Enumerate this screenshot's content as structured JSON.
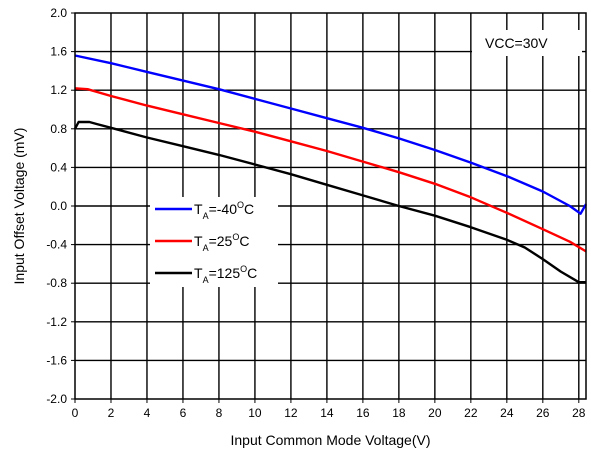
{
  "chart_data": {
    "type": "line",
    "xlabel": "Input Common Mode Voltage(V)",
    "ylabel": "Input Offset Voltage (mV)",
    "xlim": [
      0,
      28.4
    ],
    "ylim": [
      -2.0,
      2.0
    ],
    "x_ticks": [
      0,
      2,
      4,
      6,
      8,
      10,
      12,
      14,
      16,
      18,
      20,
      22,
      24,
      26,
      28
    ],
    "x_tick_labels": [
      "0",
      "2",
      "4",
      "6",
      "8",
      "10",
      "12",
      "14",
      "16",
      "18",
      "20",
      "22",
      "24",
      "26",
      "28"
    ],
    "y_ticks": [
      -2.0,
      -1.6,
      -1.2,
      -0.8,
      -0.4,
      0.0,
      0.4,
      0.8,
      1.2,
      1.6,
      2.0
    ],
    "y_tick_labels": [
      "-2.0",
      "-1.6",
      "-1.2",
      "-0.8",
      "-0.4",
      "0.0",
      "0.4",
      "0.8",
      "1.2",
      "1.6",
      "2.0"
    ],
    "grid": true,
    "annotation": "VCC=30V",
    "legend_position": "center-left",
    "series": [
      {
        "label_main": "T",
        "label_sub": "A",
        "label_rest": "=-40",
        "label_sup": "O",
        "label_end": "C",
        "color": "#0000ff",
        "x": [
          0,
          2,
          4,
          6,
          8,
          10,
          12,
          14,
          16,
          18,
          20,
          22,
          24,
          26,
          27.5,
          28.1,
          28.4
        ],
        "y": [
          1.56,
          1.48,
          1.39,
          1.3,
          1.21,
          1.11,
          1.01,
          0.91,
          0.81,
          0.7,
          0.58,
          0.45,
          0.31,
          0.15,
          0.0,
          -0.08,
          0.02
        ]
      },
      {
        "label_main": "T",
        "label_sub": "A",
        "label_rest": "=25",
        "label_sup": "O",
        "label_end": "C",
        "color": "#ff0000",
        "x": [
          0,
          0.7,
          2,
          4,
          6,
          8,
          10,
          12,
          14,
          16,
          18,
          20,
          22,
          24,
          26,
          27.5,
          28.4
        ],
        "y": [
          1.22,
          1.21,
          1.14,
          1.04,
          0.95,
          0.86,
          0.77,
          0.67,
          0.57,
          0.46,
          0.35,
          0.23,
          0.09,
          -0.07,
          -0.24,
          -0.37,
          -0.47
        ]
      },
      {
        "label_main": "T",
        "label_sub": "A",
        "label_rest": "=125",
        "label_sup": "O",
        "label_end": "C",
        "color": "#000000",
        "x": [
          0,
          0.2,
          0.8,
          1.2,
          2,
          4,
          6,
          8,
          10,
          12,
          14,
          16,
          18,
          20,
          22,
          24,
          25,
          26,
          27,
          28,
          28.4
        ],
        "y": [
          0.8,
          0.87,
          0.87,
          0.85,
          0.81,
          0.71,
          0.62,
          0.53,
          0.43,
          0.33,
          0.22,
          0.11,
          0.0,
          -0.1,
          -0.22,
          -0.35,
          -0.43,
          -0.55,
          -0.68,
          -0.79,
          -0.79
        ]
      }
    ]
  }
}
